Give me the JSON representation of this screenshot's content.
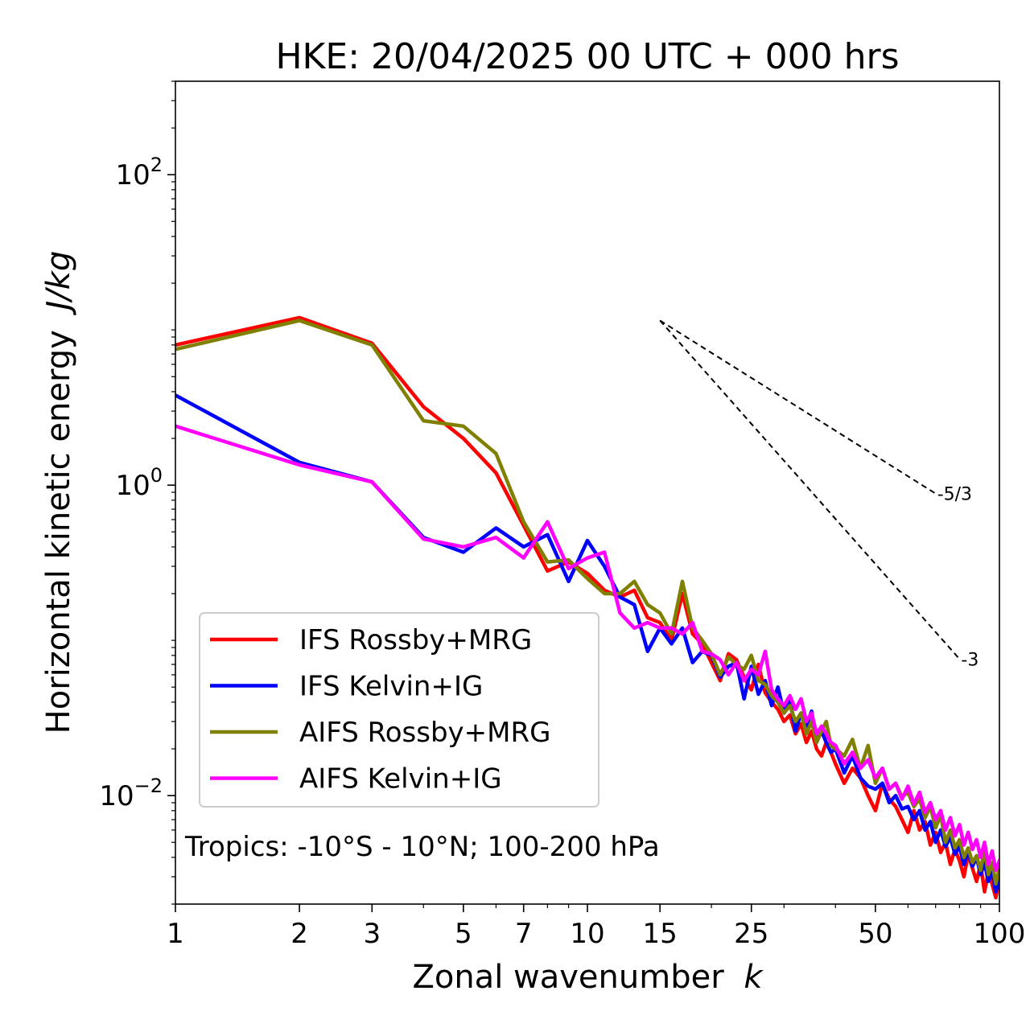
{
  "chart_data": {
    "type": "line",
    "title": "HKE: 20/04/2025 00 UTC + 000 hrs",
    "xlabel": "Zonal wavenumber",
    "xlabel_symbol": "k",
    "ylabel": "Horizontal kinetic energy",
    "ylabel_units": "J/kg",
    "xscale": "log",
    "yscale": "log",
    "xlim": [
      1,
      100
    ],
    "ylim": [
      0.002,
      400
    ],
    "x_ticks": [
      1,
      2,
      3,
      5,
      7,
      10,
      15,
      25,
      50,
      100
    ],
    "x_tick_labels": [
      "1",
      "2",
      "3",
      "5",
      "7",
      "10",
      "15",
      "25",
      "50",
      "100"
    ],
    "y_ticks": [
      {
        "value": 100,
        "base": "10",
        "exp": "2"
      },
      {
        "value": 1,
        "base": "10",
        "exp": "0"
      },
      {
        "value": 0.01,
        "base": "10",
        "exp": "−2"
      }
    ],
    "grid": false,
    "legend_position": "lower-left",
    "annotation": "Tropics: -10°S - 10°N; 100-200 hPa",
    "reference_slopes": [
      {
        "label": "-5/3",
        "slope": -1.6667,
        "x_start": 15,
        "x_end": 70,
        "y_start": 11.5
      },
      {
        "label": "-3",
        "slope": -3,
        "x_start": 15,
        "x_end": 80,
        "y_start": 11.5
      }
    ],
    "series": [
      {
        "name": "IFS Rossby+MRG",
        "color": "#ff0000",
        "x": [
          1,
          2,
          3,
          4,
          5,
          6,
          7,
          8,
          9,
          10,
          11,
          12,
          13,
          14,
          15,
          16,
          17,
          18,
          19,
          20,
          21,
          22,
          23,
          24,
          25,
          26,
          27,
          28,
          29,
          30,
          31,
          32,
          33,
          34,
          35,
          36,
          37,
          38,
          39,
          40,
          42,
          44,
          46,
          48,
          50,
          52,
          54,
          56,
          58,
          60,
          62,
          64,
          66,
          68,
          70,
          72,
          74,
          76,
          78,
          80,
          82,
          84,
          86,
          88,
          90,
          92,
          94,
          96,
          98,
          100
        ],
        "y": [
          8.0,
          12.0,
          8.2,
          3.2,
          2.0,
          1.2,
          0.55,
          0.28,
          0.32,
          0.27,
          0.21,
          0.19,
          0.21,
          0.14,
          0.13,
          0.1,
          0.2,
          0.11,
          0.095,
          0.072,
          0.055,
          0.082,
          0.075,
          0.058,
          0.048,
          0.07,
          0.046,
          0.04,
          0.036,
          0.03,
          0.033,
          0.025,
          0.029,
          0.022,
          0.026,
          0.02,
          0.018,
          0.022,
          0.019,
          0.016,
          0.012,
          0.015,
          0.013,
          0.01,
          0.008,
          0.012,
          0.0095,
          0.0085,
          0.007,
          0.0058,
          0.008,
          0.006,
          0.0068,
          0.0048,
          0.0058,
          0.0043,
          0.005,
          0.0036,
          0.0045,
          0.0038,
          0.003,
          0.0042,
          0.0034,
          0.0028,
          0.0036,
          0.0024,
          0.0032,
          0.0027,
          0.0022,
          0.003
        ]
      },
      {
        "name": "IFS Kelvin+IG",
        "color": "#0000ff",
        "x": [
          1,
          2,
          3,
          4,
          5,
          6,
          7,
          8,
          9,
          10,
          11,
          12,
          13,
          14,
          15,
          16,
          17,
          18,
          19,
          20,
          21,
          22,
          23,
          24,
          25,
          26,
          27,
          28,
          29,
          30,
          31,
          32,
          33,
          34,
          35,
          36,
          37,
          38,
          39,
          40,
          42,
          44,
          46,
          48,
          50,
          52,
          54,
          56,
          58,
          60,
          62,
          64,
          66,
          68,
          70,
          72,
          74,
          76,
          78,
          80,
          82,
          84,
          86,
          88,
          90,
          92,
          94,
          96,
          98,
          100
        ],
        "y": [
          3.8,
          1.4,
          1.05,
          0.46,
          0.37,
          0.53,
          0.4,
          0.48,
          0.24,
          0.44,
          0.3,
          0.19,
          0.17,
          0.085,
          0.12,
          0.095,
          0.12,
          0.072,
          0.085,
          0.08,
          0.058,
          0.068,
          0.072,
          0.042,
          0.068,
          0.045,
          0.055,
          0.038,
          0.05,
          0.034,
          0.042,
          0.026,
          0.034,
          0.028,
          0.035,
          0.022,
          0.026,
          0.022,
          0.019,
          0.02,
          0.014,
          0.018,
          0.013,
          0.0115,
          0.011,
          0.012,
          0.009,
          0.01,
          0.0082,
          0.0085,
          0.007,
          0.008,
          0.006,
          0.0068,
          0.005,
          0.006,
          0.0047,
          0.0054,
          0.0042,
          0.0047,
          0.0036,
          0.0044,
          0.0035,
          0.004,
          0.0031,
          0.0037,
          0.0028,
          0.0033,
          0.0024,
          0.0029
        ]
      },
      {
        "name": "AIFS Rossby+MRG",
        "color": "#808000",
        "x": [
          1,
          2,
          3,
          4,
          5,
          6,
          7,
          8,
          9,
          10,
          11,
          12,
          13,
          14,
          15,
          16,
          17,
          18,
          19,
          20,
          21,
          22,
          23,
          24,
          25,
          26,
          27,
          28,
          29,
          30,
          31,
          32,
          33,
          34,
          35,
          36,
          37,
          38,
          39,
          40,
          42,
          44,
          46,
          48,
          50,
          52,
          54,
          56,
          58,
          60,
          62,
          64,
          66,
          68,
          70,
          72,
          74,
          76,
          78,
          80,
          82,
          84,
          86,
          88,
          90,
          92,
          94,
          96,
          98,
          100
        ],
        "y": [
          7.5,
          11.5,
          8.0,
          2.6,
          2.4,
          1.6,
          0.58,
          0.32,
          0.33,
          0.25,
          0.2,
          0.2,
          0.24,
          0.17,
          0.15,
          0.11,
          0.24,
          0.12,
          0.1,
          0.082,
          0.06,
          0.078,
          0.07,
          0.065,
          0.08,
          0.055,
          0.052,
          0.044,
          0.04,
          0.034,
          0.038,
          0.03,
          0.034,
          0.025,
          0.03,
          0.022,
          0.026,
          0.03,
          0.021,
          0.02,
          0.018,
          0.023,
          0.015,
          0.021,
          0.012,
          0.015,
          0.011,
          0.012,
          0.0098,
          0.0105,
          0.0085,
          0.0095,
          0.0072,
          0.0085,
          0.0062,
          0.0075,
          0.005,
          0.006,
          0.0046,
          0.0052,
          0.004,
          0.0046,
          0.0037,
          0.0041,
          0.0033,
          0.0045,
          0.0031,
          0.0037,
          0.0027,
          0.0034
        ]
      },
      {
        "name": "AIFS Kelvin+IG",
        "color": "#ff00ff",
        "x": [
          1,
          2,
          3,
          4,
          5,
          6,
          7,
          8,
          9,
          10,
          11,
          12,
          13,
          14,
          15,
          16,
          17,
          18,
          19,
          20,
          21,
          22,
          23,
          24,
          25,
          26,
          27,
          28,
          29,
          30,
          31,
          32,
          33,
          34,
          35,
          36,
          37,
          38,
          39,
          40,
          42,
          44,
          46,
          48,
          50,
          52,
          54,
          56,
          58,
          60,
          62,
          64,
          66,
          68,
          70,
          72,
          74,
          76,
          78,
          80,
          82,
          84,
          86,
          88,
          90,
          92,
          94,
          96,
          98,
          100
        ],
        "y": [
          2.4,
          1.35,
          1.05,
          0.45,
          0.4,
          0.46,
          0.34,
          0.58,
          0.29,
          0.34,
          0.37,
          0.15,
          0.12,
          0.13,
          0.12,
          0.12,
          0.11,
          0.13,
          0.085,
          0.082,
          0.075,
          0.06,
          0.072,
          0.055,
          0.065,
          0.06,
          0.085,
          0.048,
          0.042,
          0.038,
          0.044,
          0.036,
          0.042,
          0.03,
          0.034,
          0.025,
          0.028,
          0.025,
          0.022,
          0.021,
          0.016,
          0.019,
          0.015,
          0.017,
          0.013,
          0.015,
          0.011,
          0.012,
          0.0095,
          0.0115,
          0.0088,
          0.0105,
          0.0078,
          0.009,
          0.007,
          0.008,
          0.006,
          0.0072,
          0.0055,
          0.0065,
          0.0048,
          0.0058,
          0.0045,
          0.0052,
          0.004,
          0.005,
          0.0036,
          0.0044,
          0.0033,
          0.0038
        ]
      }
    ]
  }
}
